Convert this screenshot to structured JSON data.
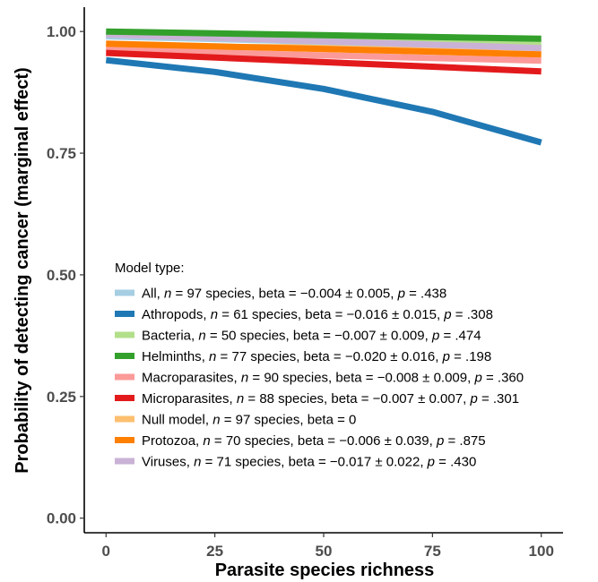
{
  "chart_data": {
    "type": "line",
    "xlabel": "Parasite species richness",
    "ylabel": "Probability of detecting cancer (marginal effect)",
    "xlim": [
      -5,
      105
    ],
    "ylim": [
      -0.03,
      1.05
    ],
    "xticks": [
      0,
      25,
      50,
      75,
      100
    ],
    "xtick_labels": [
      "0",
      "25",
      "50",
      "75",
      "100"
    ],
    "yticks": [
      0.0,
      0.25,
      0.5,
      0.75,
      1.0
    ],
    "ytick_labels": [
      "0.00",
      "0.25",
      "0.50",
      "0.75",
      "1.00"
    ],
    "grid": false,
    "legend": {
      "title": "Model type:",
      "placement": "bottom-left inside"
    },
    "series": [
      {
        "name": "All",
        "n": "97",
        "beta": "−0.004",
        "se": "0.005",
        "p": ".438",
        "color": "#a6cee3",
        "x": [
          0,
          100
        ],
        "y": [
          0.99,
          0.968
        ]
      },
      {
        "name": "Athropods",
        "n": "61",
        "beta": "−0.016",
        "se": "0.015",
        "p": ".308",
        "color": "#1f78b4",
        "x": [
          0,
          25,
          50,
          75,
          100
        ],
        "y": [
          0.941,
          0.917,
          0.882,
          0.835,
          0.772
        ]
      },
      {
        "name": "Bacteria",
        "n": "50",
        "beta": "−0.007",
        "se": "0.009",
        "p": ".474",
        "color": "#b2df8a",
        "x": [
          0,
          100
        ],
        "y": [
          0.996,
          0.978
        ]
      },
      {
        "name": "Helminths",
        "n": "77",
        "beta": "−0.020",
        "se": "0.016",
        "p": ".198",
        "color": "#33a02c",
        "x": [
          0,
          100
        ],
        "y": [
          1.0,
          0.985
        ]
      },
      {
        "name": "Macroparasites",
        "n": "90",
        "beta": "−0.008",
        "se": "0.009",
        "p": ".360",
        "color": "#fb9a99",
        "x": [
          0,
          100
        ],
        "y": [
          0.962,
          0.94
        ]
      },
      {
        "name": "Microparasites",
        "n": "88",
        "beta": "−0.007",
        "se": "0.007",
        "p": ".301",
        "color": "#e31a1c",
        "x": [
          0,
          100
        ],
        "y": [
          0.956,
          0.918
        ]
      },
      {
        "name": "Null model",
        "n": "97",
        "beta": "0",
        "se": "",
        "p": "",
        "color": "#fdbf6f",
        "x": [
          0,
          100
        ],
        "y": [
          0.968,
          0.968
        ]
      },
      {
        "name": "Protozoa",
        "n": "70",
        "beta": "−0.006",
        "se": "0.039",
        "p": ".875",
        "color": "#ff7f00",
        "x": [
          0,
          100
        ],
        "y": [
          0.975,
          0.953
        ]
      },
      {
        "name": "Viruses",
        "n": "71",
        "beta": "−0.017",
        "se": "0.022",
        "p": ".430",
        "color": "#cab2d6",
        "x": [
          0,
          100
        ],
        "y": [
          0.994,
          0.966
        ]
      }
    ]
  }
}
